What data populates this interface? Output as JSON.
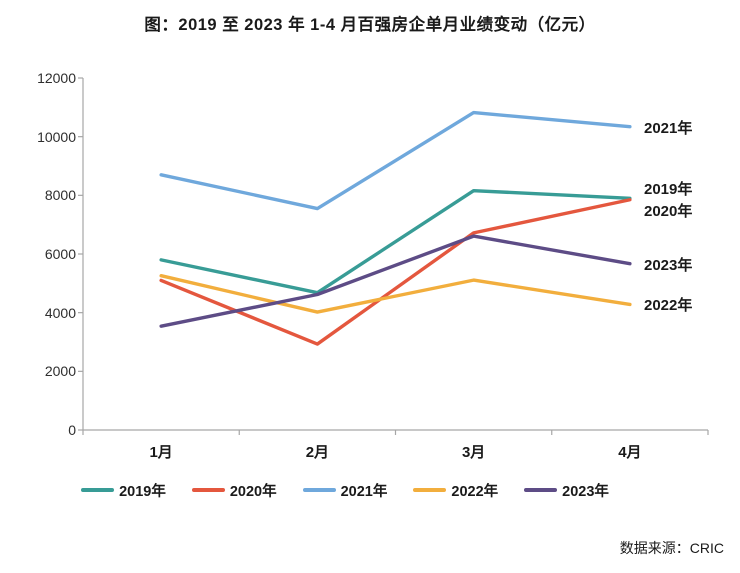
{
  "title": "图：2019 至 2023 年 1-4 月百强房企单月业绩变动（亿元）",
  "source": "数据来源：CRIC",
  "chart_data": {
    "type": "line",
    "title": "图：2019 至 2023 年 1-4 月百强房企单月业绩变动（亿元）",
    "xlabel": "",
    "ylabel": "亿元",
    "categories": [
      "1月",
      "2月",
      "3月",
      "4月"
    ],
    "series": [
      {
        "name": "2019年",
        "color": "#389C96",
        "values": [
          5800,
          4680,
          8160,
          7900
        ]
      },
      {
        "name": "2020年",
        "color": "#E4573E",
        "values": [
          5100,
          2930,
          6720,
          7850
        ]
      },
      {
        "name": "2021年",
        "color": "#6FA8DC",
        "values": [
          8700,
          7550,
          10820,
          10340
        ]
      },
      {
        "name": "2022年",
        "color": "#F2AE3D",
        "values": [
          5260,
          4020,
          5110,
          4280
        ]
      },
      {
        "name": "2023年",
        "color": "#5D4C86",
        "values": [
          3540,
          4620,
          6610,
          5670
        ]
      }
    ],
    "ylim": [
      0,
      12000
    ],
    "ytick_step": 2000,
    "ytick_labels": [
      "0",
      "2000",
      "4000",
      "6000",
      "8000",
      "10000",
      "12000"
    ],
    "grid": false,
    "legend_position": "bottom",
    "legend_entries": [
      "2019年",
      "2020年",
      "2021年",
      "2022年",
      "2023年"
    ],
    "end_labels_top_to_bottom": [
      "2021年",
      "2019年",
      "2020年",
      "2023年",
      "2022年"
    ],
    "source_note": "数据来源：CRIC"
  }
}
